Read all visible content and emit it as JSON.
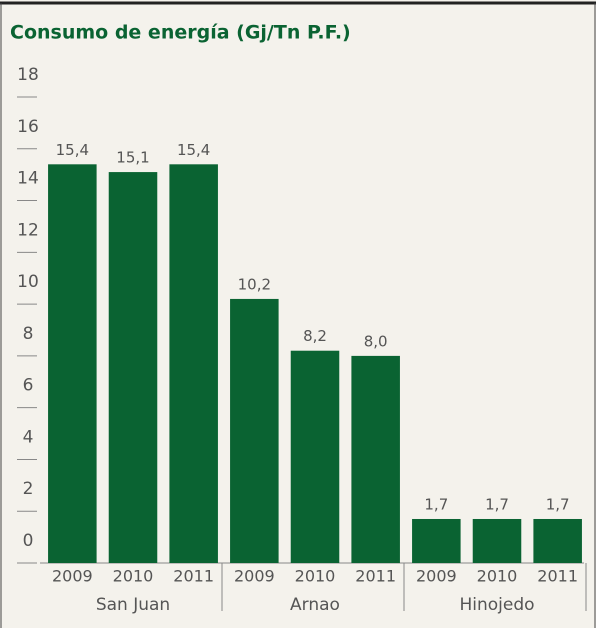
{
  "chart_data": {
    "type": "bar",
    "title": "Consumo de energía (Gj/Tn P.F.)",
    "color": "#0a6332",
    "groups": [
      {
        "name": "San Juan",
        "categories": [
          "2009",
          "2010",
          "2011"
        ],
        "values": [
          15.4,
          15.1,
          15.4
        ],
        "value_labels": [
          "15,4",
          "15,1",
          "15,4"
        ]
      },
      {
        "name": "Arnao",
        "categories": [
          "2009",
          "2010",
          "2011"
        ],
        "values": [
          10.2,
          8.2,
          8.0
        ],
        "value_labels": [
          "10,2",
          "8,2",
          "8,0"
        ]
      },
      {
        "name": "Hinojedo",
        "categories": [
          "2009",
          "2010",
          "2011"
        ],
        "values": [
          1.7,
          1.7,
          1.7
        ],
        "value_labels": [
          "1,7",
          "1,7",
          "1,7"
        ]
      }
    ],
    "ylim": [
      0,
      18
    ],
    "yticks": [
      0,
      2,
      4,
      6,
      8,
      10,
      12,
      14,
      16,
      18
    ],
    "grid": true
  }
}
